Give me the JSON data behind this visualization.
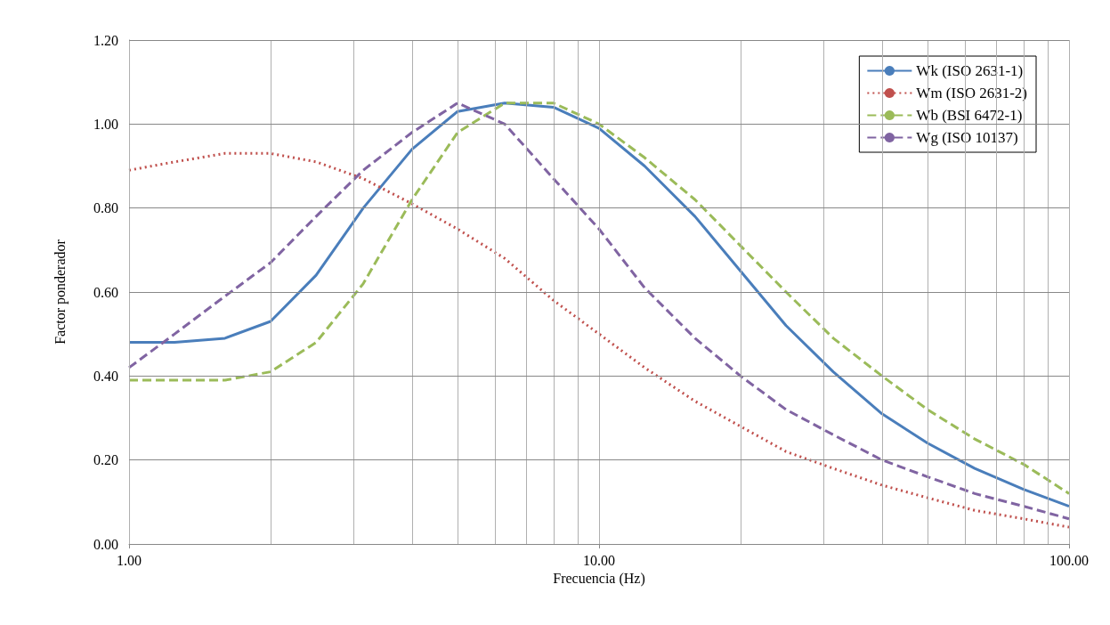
{
  "chart_data": {
    "type": "line",
    "xlabel": "Frecuencia (Hz)",
    "ylabel": "Factor ponderador",
    "x": [
      1,
      1.25,
      1.6,
      2,
      2.5,
      3.15,
      4,
      5,
      6.3,
      8,
      10,
      12.5,
      16,
      20,
      25,
      31.5,
      40,
      50,
      63,
      80,
      100
    ],
    "series": [
      {
        "name": "Wk (ISO 2631-1)",
        "color": "#4a7ebb",
        "line_style": "solid",
        "values": [
          0.48,
          0.48,
          0.49,
          0.53,
          0.64,
          0.8,
          0.94,
          1.03,
          1.05,
          1.04,
          0.99,
          0.9,
          0.78,
          0.65,
          0.52,
          0.41,
          0.31,
          0.24,
          0.18,
          0.13,
          0.09
        ]
      },
      {
        "name": "Wm (ISO 2631-2)",
        "color": "#c0504d",
        "line_style": "dotted",
        "values": [
          0.89,
          0.91,
          0.93,
          0.93,
          0.91,
          0.87,
          0.81,
          0.75,
          0.68,
          0.58,
          0.5,
          0.42,
          0.34,
          0.28,
          0.22,
          0.18,
          0.14,
          0.11,
          0.08,
          0.06,
          0.04
        ]
      },
      {
        "name": "Wb (BSI 6472-1)",
        "color": "#9bbb59",
        "line_style": "dashed",
        "values": [
          0.39,
          0.39,
          0.39,
          0.41,
          0.48,
          0.62,
          0.82,
          0.98,
          1.05,
          1.05,
          1.0,
          0.92,
          0.82,
          0.71,
          0.6,
          0.49,
          0.4,
          0.32,
          0.25,
          0.19,
          0.12
        ]
      },
      {
        "name": "Wg (ISO 10137)",
        "color": "#8064a2",
        "line_style": "dashed",
        "values": [
          0.42,
          0.5,
          0.59,
          0.67,
          0.78,
          0.89,
          0.98,
          1.05,
          1.0,
          0.87,
          0.75,
          0.61,
          0.49,
          0.4,
          0.32,
          0.26,
          0.2,
          0.16,
          0.12,
          0.09,
          0.06
        ]
      }
    ],
    "log": "x",
    "xlim": [
      1,
      100
    ],
    "xticks": [
      {
        "value": 1,
        "label": "1.00"
      },
      {
        "value": 2,
        "label": null
      },
      {
        "value": 3,
        "label": null
      },
      {
        "value": 4,
        "label": null
      },
      {
        "value": 5,
        "label": null
      },
      {
        "value": 6,
        "label": null
      },
      {
        "value": 7,
        "label": null
      },
      {
        "value": 8,
        "label": null
      },
      {
        "value": 9,
        "label": null
      },
      {
        "value": 10,
        "label": "10.00"
      },
      {
        "value": 20,
        "label": null
      },
      {
        "value": 30,
        "label": null
      },
      {
        "value": 40,
        "label": null
      },
      {
        "value": 50,
        "label": null
      },
      {
        "value": 60,
        "label": null
      },
      {
        "value": 70,
        "label": null
      },
      {
        "value": 80,
        "label": null
      },
      {
        "value": 90,
        "label": null
      },
      {
        "value": 100,
        "label": "100.00"
      }
    ],
    "ylim": [
      0,
      1.2
    ],
    "yticks": [
      {
        "value": 0,
        "label": "0.00"
      },
      {
        "value": 0.2,
        "label": "0.20"
      },
      {
        "value": 0.4,
        "label": "0.40"
      },
      {
        "value": 0.6,
        "label": "0.60"
      },
      {
        "value": 0.8,
        "label": "0.80"
      },
      {
        "value": 1,
        "label": "1.00"
      },
      {
        "value": 1.2,
        "label": "1.20"
      }
    ],
    "grid": true,
    "legend": "top right",
    "marker": "none"
  }
}
